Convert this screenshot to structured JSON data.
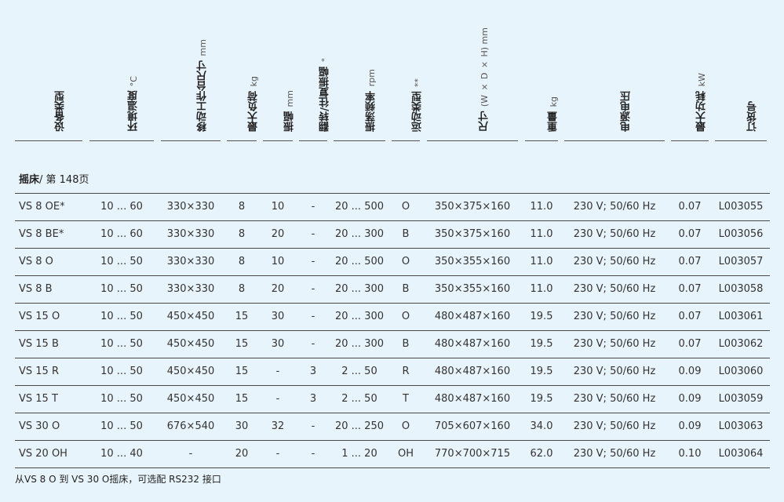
{
  "headers": [
    {
      "label": "设备类型",
      "unit": ""
    },
    {
      "label": "环境温度",
      "unit": "°C"
    },
    {
      "label": "移动工作台尺寸",
      "unit": "mm"
    },
    {
      "label": "最大负荷",
      "unit": "kg"
    },
    {
      "label": "振幅",
      "unit": "mm"
    },
    {
      "label": "翻转/往复振幅",
      "unit": "°"
    },
    {
      "label": "振荡频率",
      "unit": "rpm"
    },
    {
      "label": "运动类型",
      "unit": "**"
    },
    {
      "label": "尺寸",
      "unit": "(W × D × H) mm"
    },
    {
      "label": "重量",
      "unit": "kg"
    },
    {
      "label": "电源电压",
      "unit": ""
    },
    {
      "label": "最大功耗",
      "unit": "kW"
    },
    {
      "label": "订货号",
      "unit": ""
    }
  ],
  "section": {
    "title": "摇床",
    "page_ref": "/ 第 148页"
  },
  "rows": [
    [
      "VS 8 OE*",
      "10 ... 60",
      "330×330",
      "8",
      "10",
      "-",
      "20 ... 500",
      "O",
      "350×375×160",
      "11.0",
      "230 V; 50/60 Hz",
      "0.07",
      "L003055"
    ],
    [
      "VS 8 BE*",
      "10 ... 60",
      "330×330",
      "8",
      "20",
      "-",
      "20 ... 300",
      "B",
      "350×375×160",
      "11.0",
      "230 V; 50/60 Hz",
      "0.07",
      "L003056"
    ],
    [
      "VS 8 O",
      "10 ... 50",
      "330×330",
      "8",
      "10",
      "-",
      "20 ... 500",
      "O",
      "350×355×160",
      "11.0",
      "230 V; 50/60 Hz",
      "0.07",
      "L003057"
    ],
    [
      "VS 8 B",
      "10 ... 50",
      "330×330",
      "8",
      "20",
      "-",
      "20 ... 300",
      "B",
      "350×355×160",
      "11.0",
      "230 V; 50/60 Hz",
      "0.07",
      "L003058"
    ],
    [
      "VS 15 O",
      "10 ... 50",
      "450×450",
      "15",
      "30",
      "-",
      "20 ... 300",
      "O",
      "480×487×160",
      "19.5",
      "230 V; 50/60 Hz",
      "0.07",
      "L003061"
    ],
    [
      "VS 15 B",
      "10 ... 50",
      "450×450",
      "15",
      "30",
      "-",
      "20 ... 300",
      "B",
      "480×487×160",
      "19.5",
      "230 V; 50/60 Hz",
      "0.07",
      "L003062"
    ],
    [
      "VS 15 R",
      "10 ... 50",
      "450×450",
      "15",
      "-",
      "3",
      "2 ... 50",
      "R",
      "480×487×160",
      "19.5",
      "230 V; 50/60 Hz",
      "0.09",
      "L003060"
    ],
    [
      "VS 15 T",
      "10 ... 50",
      "450×450",
      "15",
      "-",
      "3",
      "2 ... 50",
      "T",
      "480×487×160",
      "19.5",
      "230 V; 50/60 Hz",
      "0.09",
      "L003059"
    ],
    [
      "VS 30 O",
      "10 ... 50",
      "676×540",
      "30",
      "32",
      "-",
      "20 ... 250",
      "O",
      "705×607×160",
      "34.0",
      "230 V; 50/60 Hz",
      "0.09",
      "L003063"
    ],
    [
      "VS 20 OH",
      "10 ... 40",
      "-",
      "20",
      "-",
      "-",
      "1 ... 20",
      "OH",
      "770×700×715",
      "62.0",
      "230 V; 50/60 Hz",
      "0.10",
      "L003064"
    ]
  ],
  "footnote": "从VS 8 O 到 VS 30 O摇床，可选配 RS232 接口"
}
